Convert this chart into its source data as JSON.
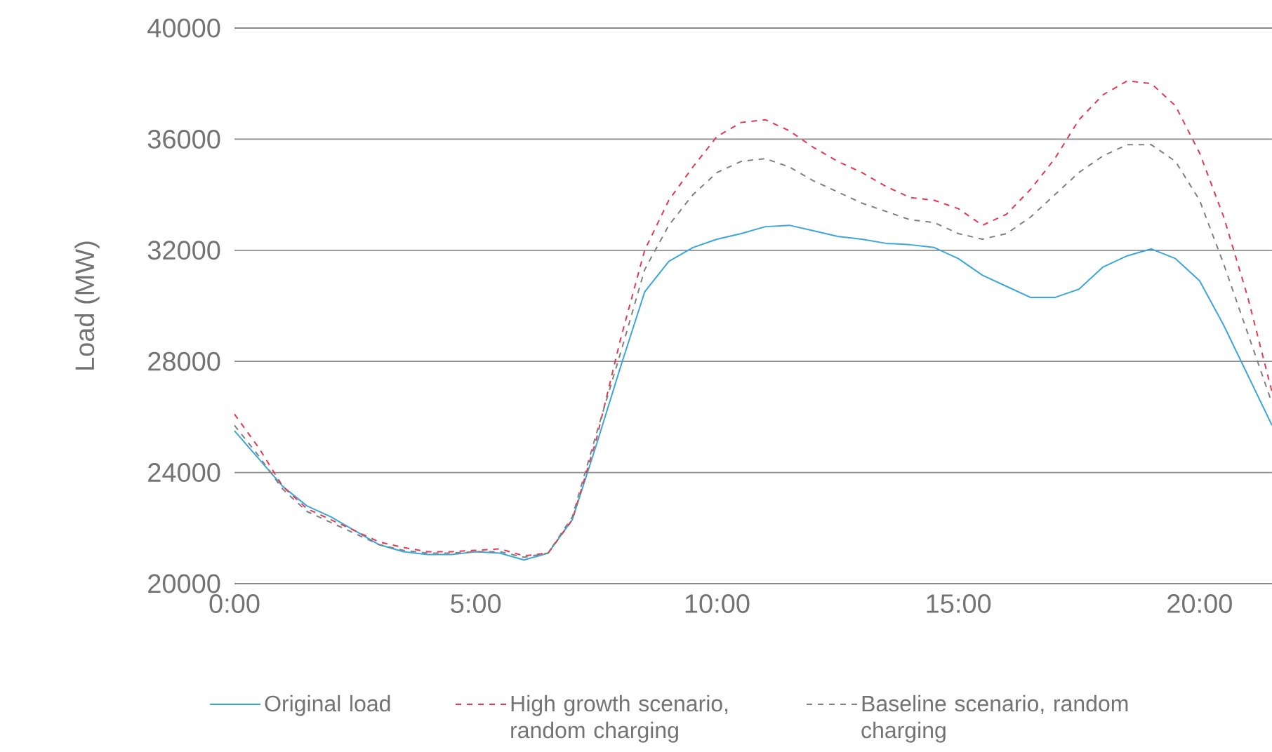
{
  "chart_data": {
    "type": "line",
    "ylabel": "Load (MW)",
    "xlim": [
      0,
      21.5
    ],
    "ylim": [
      20000,
      40000
    ],
    "xticks": [
      {
        "value": 0,
        "label": "0:00"
      },
      {
        "value": 5,
        "label": "5:00"
      },
      {
        "value": 10,
        "label": "10:00"
      },
      {
        "value": 15,
        "label": "15:00"
      },
      {
        "value": 20,
        "label": "20:00"
      }
    ],
    "yticks": [
      20000,
      24000,
      28000,
      32000,
      36000,
      40000
    ],
    "grid": "y",
    "legend": "bottom",
    "marker": "none",
    "x": [
      0,
      0.5,
      1,
      1.5,
      2,
      2.5,
      3,
      3.5,
      4,
      4.5,
      5,
      5.5,
      6,
      6.5,
      7,
      7.5,
      8,
      8.5,
      9,
      9.5,
      10,
      10.5,
      11,
      11.5,
      12,
      12.5,
      13,
      13.5,
      14,
      14.5,
      15,
      15.5,
      16,
      16.5,
      17,
      17.5,
      18,
      18.5,
      19,
      19.5,
      20,
      20.5,
      21,
      21.5
    ],
    "series": [
      {
        "name": "Original load",
        "color": "#3aa6dd",
        "line_style": "solid",
        "values": [
          25500,
          24500,
          23500,
          22800,
          22400,
          21900,
          21400,
          21150,
          21050,
          21050,
          21150,
          21100,
          20850,
          21100,
          22300,
          25000,
          27800,
          30500,
          31600,
          32100,
          32400,
          32600,
          32850,
          32900,
          32700,
          32500,
          32400,
          32250,
          32200,
          32100,
          31700,
          31100,
          30700,
          30300,
          30300,
          30600,
          31400,
          31800,
          32050,
          31700,
          30900,
          29300,
          27500,
          25700
        ]
      },
      {
        "name": "High growth scenario, random charging",
        "color": "#e8384f",
        "line_style": "dashed",
        "values": [
          26100,
          24900,
          23500,
          22700,
          22300,
          21900,
          21500,
          21300,
          21150,
          21150,
          21200,
          21250,
          21000,
          21100,
          22300,
          25200,
          28800,
          32000,
          33800,
          35000,
          36100,
          36600,
          36700,
          36300,
          35700,
          35200,
          34800,
          34300,
          33900,
          33800,
          33500,
          32900,
          33300,
          34200,
          35300,
          36700,
          37600,
          38100,
          38000,
          37200,
          35500,
          33200,
          30300,
          26900
        ]
      },
      {
        "name": "Baseline scenario, random charging",
        "color": "#808080",
        "line_style": "dashed",
        "values": [
          25700,
          24600,
          23400,
          22600,
          22200,
          21800,
          21400,
          21200,
          21100,
          21100,
          21150,
          21150,
          20950,
          21100,
          22400,
          25400,
          28300,
          31300,
          32900,
          34000,
          34800,
          35200,
          35300,
          35000,
          34500,
          34100,
          33700,
          33400,
          33100,
          33000,
          32600,
          32400,
          32600,
          33200,
          34000,
          34800,
          35400,
          35800,
          35800,
          35200,
          33800,
          31500,
          29000,
          26500
        ]
      }
    ]
  }
}
